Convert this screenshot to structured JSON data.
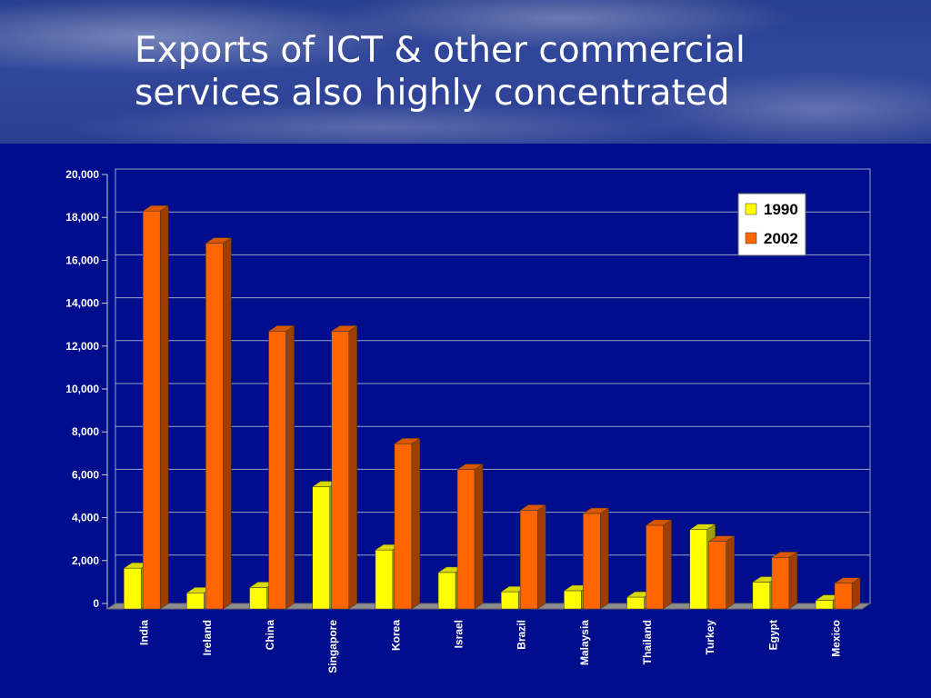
{
  "slide": {
    "title_line1": "Exports of ICT & other commercial",
    "title_line2": "services also highly concentrated"
  },
  "chart_data": {
    "type": "bar",
    "categories": [
      "India",
      "Ireland",
      "China",
      "Singapore",
      "Korea",
      "Israel",
      "Brazil",
      "Malaysia",
      "Thailand",
      "Turkey",
      "Egypt",
      "Mexico"
    ],
    "series": [
      {
        "name": "1990",
        "color": "#ffff00",
        "values": [
          1900,
          750,
          1000,
          5700,
          2750,
          1700,
          800,
          850,
          550,
          3700,
          1250,
          400
        ]
      },
      {
        "name": "2002",
        "color": "#ff6600",
        "values": [
          18550,
          17050,
          12950,
          12950,
          7700,
          6500,
          4600,
          4450,
          3900,
          3150,
          2400,
          1200
        ]
      }
    ],
    "yticks": [
      "20,000",
      "18,000",
      "16,000",
      "14,000",
      "12,000",
      "10,000",
      "8,000",
      "6,000",
      "4,000",
      "2,000",
      "0"
    ],
    "ylim": [
      0,
      20000
    ],
    "grid": true,
    "legend_position": "top-right",
    "title": "",
    "xlabel": "",
    "ylabel": ""
  }
}
